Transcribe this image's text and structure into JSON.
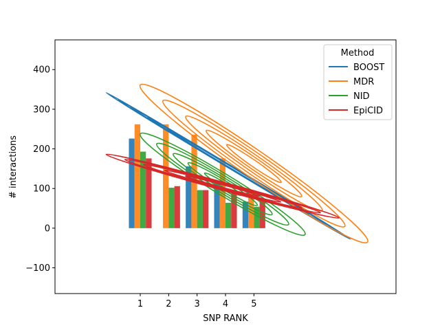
{
  "chart_data": {
    "type": "bar",
    "xlabel": "SNP RANK",
    "ylabel": "# interactions",
    "categories": [
      "1",
      "2",
      "3",
      "4",
      "5"
    ],
    "x_positions": [
      1,
      2,
      3,
      4,
      5
    ],
    "xlim": [
      -2,
      10
    ],
    "ylim": [
      -165,
      475
    ],
    "y_ticks": [
      -100,
      0,
      100,
      200,
      300,
      400
    ],
    "grid": false,
    "legend": {
      "title": "Method",
      "placement": "top-right"
    },
    "series": [
      {
        "name": "BOOST",
        "color": "#1f77b4",
        "values": [
          226,
          0,
          156,
          116,
          67
        ]
      },
      {
        "name": "MDR",
        "color": "#ff7f0e",
        "values": [
          262,
          262,
          236,
          176,
          96
        ]
      },
      {
        "name": "NID",
        "color": "#2ca02c",
        "values": [
          193,
          102,
          96,
          64,
          54
        ]
      },
      {
        "name": "EpiCID",
        "color": "#d62728",
        "values": [
          176,
          106,
          96,
          88,
          70
        ]
      }
    ],
    "kde_overlays": [
      {
        "series": "BOOST",
        "color": "#1f77b4",
        "levels": 5,
        "center": [
          4.1,
          157
        ],
        "major_end": [
          8.4,
          -28
        ],
        "minor_half": 4,
        "rings": [
          1.0,
          0.9,
          0.8,
          0.66,
          0.5
        ]
      },
      {
        "series": "MDR",
        "color": "#ff7f0e",
        "levels": 5,
        "center": [
          5.0,
          163
        ],
        "major_end": [
          1.0,
          361
        ],
        "minor_half": 34,
        "rings": [
          1.0,
          0.8,
          0.6,
          0.42,
          0.24
        ]
      },
      {
        "series": "NID",
        "color": "#2ca02c",
        "levels": 5,
        "center": [
          3.9,
          111
        ],
        "major_end": [
          1.0,
          238
        ],
        "minor_half": 26,
        "rings": [
          1.0,
          0.8,
          0.6,
          0.42,
          0.22
        ]
      },
      {
        "series": "EpiCID",
        "color": "#d62728",
        "levels": 5,
        "center": [
          3.9,
          106
        ],
        "major_end": [
          -0.2,
          186
        ],
        "minor_half": 10,
        "rings": [
          1.0,
          0.84,
          0.68,
          0.5,
          0.32
        ]
      }
    ]
  }
}
